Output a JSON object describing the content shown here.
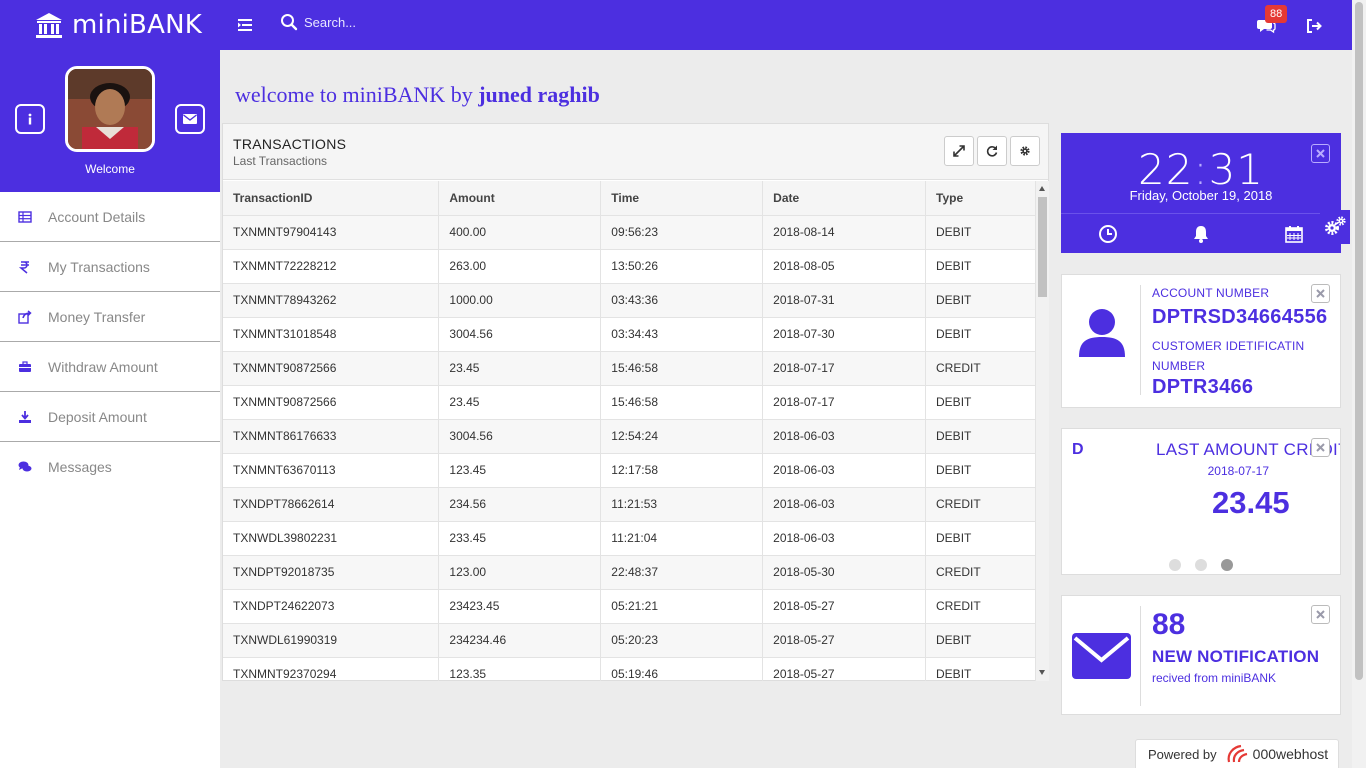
{
  "brand": {
    "name": "miniBANK"
  },
  "topbar": {
    "search_placeholder": "Search...",
    "message_badge": "88"
  },
  "sidebar": {
    "welcome": "Welcome",
    "items": [
      {
        "label": "Account Details",
        "icon": "table-icon"
      },
      {
        "label": "My Transactions",
        "icon": "rupee-icon"
      },
      {
        "label": "Money Transfer",
        "icon": "share-icon"
      },
      {
        "label": "Withdraw Amount",
        "icon": "briefcase-icon"
      },
      {
        "label": "Deposit Amount",
        "icon": "download-icon"
      },
      {
        "label": "Messages",
        "icon": "comments-icon"
      }
    ]
  },
  "heading": {
    "prefix": "welcome to miniBANK by",
    "name": "juned raghib"
  },
  "transactions": {
    "title": "TRANSACTIONS",
    "subtitle": "Last Transactions",
    "columns": [
      "TransactionID",
      "Amount",
      "Time",
      "Date",
      "Type"
    ],
    "rows": [
      [
        "TXNMNT97904143",
        "400.00",
        "09:56:23",
        "2018-08-14",
        "DEBIT"
      ],
      [
        "TXNMNT72228212",
        "263.00",
        "13:50:26",
        "2018-08-05",
        "DEBIT"
      ],
      [
        "TXNMNT78943262",
        "1000.00",
        "03:43:36",
        "2018-07-31",
        "DEBIT"
      ],
      [
        "TXNMNT31018548",
        "3004.56",
        "03:34:43",
        "2018-07-30",
        "DEBIT"
      ],
      [
        "TXNMNT90872566",
        "23.45",
        "15:46:58",
        "2018-07-17",
        "CREDIT"
      ],
      [
        "TXNMNT90872566",
        "23.45",
        "15:46:58",
        "2018-07-17",
        "DEBIT"
      ],
      [
        "TXNMNT86176633",
        "3004.56",
        "12:54:24",
        "2018-06-03",
        "DEBIT"
      ],
      [
        "TXNMNT63670113",
        "123.45",
        "12:17:58",
        "2018-06-03",
        "DEBIT"
      ],
      [
        "TXNDPT78662614",
        "234.56",
        "11:21:53",
        "2018-06-03",
        "CREDIT"
      ],
      [
        "TXNWDL39802231",
        "233.45",
        "11:21:04",
        "2018-06-03",
        "DEBIT"
      ],
      [
        "TXNDPT92018735",
        "123.00",
        "22:48:37",
        "2018-05-30",
        "CREDIT"
      ],
      [
        "TXNDPT24622073",
        "23423.45",
        "05:21:21",
        "2018-05-27",
        "CREDIT"
      ],
      [
        "TXNWDL61990319",
        "234234.46",
        "05:20:23",
        "2018-05-27",
        "DEBIT"
      ],
      [
        "TXNMNT92370294",
        "123.35",
        "05:19:46",
        "2018-05-27",
        "DEBIT"
      ]
    ]
  },
  "clock": {
    "hours": "22",
    "minutes": "31",
    "date": "Friday, October 19, 2018"
  },
  "account": {
    "number_label": "ACCOUNT NUMBER",
    "number": "DPTRSD34664556",
    "cid_label": "CUSTOMER IDETIFICATIN NUMBER",
    "cid": "DPTR3466"
  },
  "last_credit": {
    "side_letter": "D",
    "title": "LAST AMOUNT CREDITI",
    "date": "2018-07-17",
    "amount": "23.45",
    "active_slide": 3
  },
  "notification": {
    "count": "88",
    "title": "NEW NOTIFICATION",
    "subtitle": "recived from miniBANK"
  },
  "footer": {
    "powered_by": "Powered by",
    "host": "000webhost"
  },
  "colors": {
    "primary": "#4c2fe0",
    "badge": "#e53935"
  }
}
